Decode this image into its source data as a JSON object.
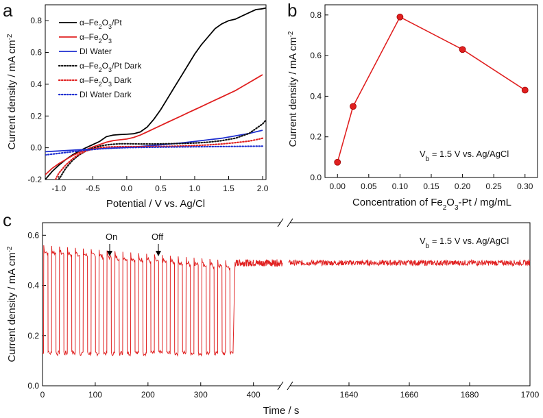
{
  "colors": {
    "black": "#000000",
    "red": "#e02020",
    "blue": "#1f2fd0",
    "dark_black": "#111111",
    "dark_red": "#e02020",
    "dark_blue": "#1f2fd0"
  },
  "chart_data": [
    {
      "type": "line",
      "panel_label": "a",
      "title": "",
      "xlabel": "Potential / V vs. Ag/Cl",
      "ylabel_main": "Current density / mA cm",
      "ylabel_sup": "-2",
      "xlim": [
        -1.2,
        2.05
      ],
      "ylim": [
        -0.2,
        0.9
      ],
      "xticks": [
        -1.0,
        -0.5,
        0.0,
        0.5,
        1.0,
        1.5,
        2.0
      ],
      "xtick_labels": [
        "-1.0",
        "-0.5",
        "0.0",
        "0.5",
        "1.0",
        "1.5",
        "2.0"
      ],
      "yticks": [
        -0.2,
        0.0,
        0.2,
        0.4,
        0.6,
        0.8
      ],
      "ytick_labels": [
        "-0.2",
        "0.0",
        "0.2",
        "0.4",
        "0.6",
        "0.8"
      ],
      "legend_position": "top-left",
      "series": [
        {
          "name": "α–Fe2O3/Pt",
          "label_prefix": "α–Fe",
          "label_sub1": "2",
          "label_mid": "O",
          "label_sub2": "3",
          "label_suffix": "/Pt",
          "style": "solid",
          "color": "black",
          "x": [
            -1.2,
            -1.1,
            -1.0,
            -0.9,
            -0.8,
            -0.7,
            -0.6,
            -0.5,
            -0.4,
            -0.3,
            -0.2,
            -0.1,
            0.0,
            0.1,
            0.2,
            0.3,
            0.4,
            0.5,
            0.6,
            0.7,
            0.8,
            0.9,
            1.0,
            1.1,
            1.2,
            1.3,
            1.4,
            1.5,
            1.6,
            1.7,
            1.8,
            1.9,
            2.0,
            2.05
          ],
          "y": [
            -0.2,
            -0.15,
            -0.11,
            -0.075,
            -0.045,
            -0.02,
            0.0,
            0.02,
            0.04,
            0.07,
            0.08,
            0.083,
            0.085,
            0.088,
            0.1,
            0.13,
            0.18,
            0.24,
            0.31,
            0.38,
            0.45,
            0.52,
            0.59,
            0.65,
            0.7,
            0.75,
            0.78,
            0.8,
            0.81,
            0.83,
            0.85,
            0.87,
            0.875,
            0.88
          ]
        },
        {
          "name": "α–Fe2O3",
          "label_prefix": "α–Fe",
          "label_sub1": "2",
          "label_mid": "O",
          "label_sub2": "3",
          "label_suffix": "",
          "style": "solid",
          "color": "red",
          "x": [
            -1.2,
            -1.1,
            -1.0,
            -0.9,
            -0.8,
            -0.7,
            -0.6,
            -0.5,
            -0.4,
            -0.3,
            -0.2,
            -0.1,
            0.0,
            0.1,
            0.2,
            0.3,
            0.4,
            0.5,
            0.6,
            0.7,
            0.8,
            0.9,
            1.0,
            1.1,
            1.2,
            1.3,
            1.4,
            1.5,
            1.6,
            1.7,
            1.8,
            1.9,
            2.0
          ],
          "y": [
            -0.17,
            -0.13,
            -0.1,
            -0.075,
            -0.05,
            -0.03,
            -0.012,
            0.005,
            0.02,
            0.035,
            0.045,
            0.05,
            0.055,
            0.065,
            0.08,
            0.1,
            0.12,
            0.14,
            0.16,
            0.18,
            0.2,
            0.22,
            0.24,
            0.26,
            0.28,
            0.3,
            0.32,
            0.34,
            0.36,
            0.385,
            0.41,
            0.435,
            0.46
          ]
        },
        {
          "name": "DI Water",
          "label_prefix": "DI Water",
          "label_sub1": "",
          "label_mid": "",
          "label_sub2": "",
          "label_suffix": "",
          "style": "solid",
          "color": "blue",
          "x": [
            -1.2,
            -1.0,
            -0.8,
            -0.6,
            -0.4,
            -0.2,
            0.0,
            0.2,
            0.4,
            0.6,
            0.8,
            1.0,
            1.2,
            1.4,
            1.6,
            1.8,
            2.0
          ],
          "y": [
            -0.025,
            -0.02,
            -0.015,
            -0.01,
            -0.006,
            -0.002,
            0.002,
            0.008,
            0.015,
            0.022,
            0.03,
            0.04,
            0.05,
            0.06,
            0.075,
            0.09,
            0.11
          ]
        },
        {
          "name": "α–Fe2O3/Pt Dark",
          "label_prefix": "α–Fe",
          "label_sub1": "2",
          "label_mid": "O",
          "label_sub2": "3",
          "label_suffix": "/Pt  Dark",
          "style": "dotted",
          "color": "dark_black",
          "x": [
            -1.0,
            -0.9,
            -0.8,
            -0.7,
            -0.6,
            -0.5,
            -0.4,
            -0.3,
            -0.2,
            -0.1,
            0.0,
            0.2,
            0.4,
            0.6,
            0.8,
            1.0,
            1.2,
            1.4,
            1.6,
            1.8,
            1.9,
            2.0,
            2.05
          ],
          "y": [
            -0.2,
            -0.13,
            -0.08,
            -0.045,
            -0.02,
            -0.003,
            0.01,
            0.018,
            0.022,
            0.025,
            0.025,
            0.024,
            0.024,
            0.025,
            0.027,
            0.03,
            0.035,
            0.045,
            0.06,
            0.09,
            0.12,
            0.15,
            0.175
          ]
        },
        {
          "name": "α–Fe2O3 Dark",
          "label_prefix": "α–Fe",
          "label_sub1": "2",
          "label_mid": "O",
          "label_sub2": "3",
          "label_suffix": "  Dark",
          "style": "dotted",
          "color": "dark_red",
          "x": [
            -1.05,
            -1.0,
            -0.9,
            -0.8,
            -0.7,
            -0.6,
            -0.5,
            -0.4,
            -0.3,
            -0.2,
            0.0,
            0.2,
            0.4,
            0.6,
            0.8,
            1.0,
            1.2,
            1.4,
            1.6,
            1.8,
            1.9,
            2.0
          ],
          "y": [
            -0.2,
            -0.16,
            -0.11,
            -0.07,
            -0.04,
            -0.02,
            -0.008,
            0.0,
            0.004,
            0.006,
            0.007,
            0.007,
            0.008,
            0.009,
            0.011,
            0.014,
            0.018,
            0.024,
            0.032,
            0.042,
            0.05,
            0.06
          ]
        },
        {
          "name": "DI Water Dark",
          "label_prefix": "DI Water  Dark",
          "label_sub1": "",
          "label_mid": "",
          "label_sub2": "",
          "label_suffix": "",
          "style": "dotted",
          "color": "dark_blue",
          "x": [
            -1.2,
            -1.0,
            -0.8,
            -0.6,
            -0.4,
            -0.2,
            0.0,
            0.5,
            1.0,
            1.5,
            2.0
          ],
          "y": [
            -0.045,
            -0.035,
            -0.025,
            -0.015,
            -0.007,
            -0.002,
            0.001,
            0.004,
            0.006,
            0.008,
            0.01
          ]
        }
      ]
    },
    {
      "type": "line",
      "panel_label": "b",
      "title": "",
      "xlabel_prefix": "Concentration of Fe",
      "xlabel_sub1": "2",
      "xlabel_mid": "O",
      "xlabel_sub2": "3",
      "xlabel_suffix": "-Pt / mg/mL",
      "ylabel_main": "Current density / mA cm",
      "ylabel_sup": "-2",
      "xlim": [
        -0.02,
        0.32
      ],
      "ylim": [
        0.0,
        0.85
      ],
      "xticks": [
        0.0,
        0.05,
        0.1,
        0.15,
        0.2,
        0.25,
        0.3
      ],
      "xtick_labels": [
        "0.00",
        "0.05",
        "0.10",
        "0.15",
        "0.20",
        "0.25",
        "0.30"
      ],
      "yticks": [
        0.0,
        0.2,
        0.4,
        0.6,
        0.8
      ],
      "ytick_labels": [
        "0.0",
        "0.2",
        "0.4",
        "0.6",
        "0.8"
      ],
      "annotation_main": "V",
      "annotation_sub": "b",
      "annotation_rest": " = 1.5 V vs. Ag/AgCl",
      "series": [
        {
          "name": "Current density",
          "color": "red",
          "x": [
            0.0,
            0.025,
            0.1,
            0.2,
            0.3
          ],
          "y": [
            0.075,
            0.35,
            0.79,
            0.63,
            0.43
          ]
        }
      ]
    },
    {
      "type": "line",
      "panel_label": "c",
      "title": "",
      "xlabel": "Time / s",
      "ylabel_main": "Current density / mA cm",
      "ylabel_sup": "-2",
      "ylim": [
        0.0,
        0.65
      ],
      "yticks": [
        0.0,
        0.2,
        0.4,
        0.6
      ],
      "ytick_labels": [
        "0.0",
        "0.2",
        "0.4",
        "0.6"
      ],
      "segment1_xlim": [
        0,
        455
      ],
      "segment1_xticks": [
        0,
        100,
        200,
        300,
        400
      ],
      "segment1_xtick_labels": [
        "0",
        "100",
        "200",
        "300",
        "400"
      ],
      "segment2_xlim": [
        1620,
        1700
      ],
      "segment2_xticks": [
        1640,
        1660,
        1680,
        1700
      ],
      "segment2_xtick_labels": [
        "1640",
        "1660",
        "1680",
        "1700"
      ],
      "axis_break": true,
      "annotation_on": "On",
      "annotation_off": "Off",
      "annotation_main": "V",
      "annotation_sub": "b",
      "annotation_rest": " = 1.5 V vs. Ag/AgCl",
      "series": [
        {
          "name": "Chopped light response",
          "color": "red",
          "pulses": {
            "start": 2,
            "period": 15,
            "on_fraction": 0.55,
            "count": 24,
            "on_start_level": 0.54,
            "on_end_level": 0.48,
            "off_level": 0.13
          },
          "steady_level_segment1": {
            "t_start": 365,
            "t_end": 455,
            "value": 0.49
          },
          "steady_level_segment2": {
            "t_start": 1620,
            "t_end": 1700,
            "value": 0.49
          }
        }
      ]
    }
  ]
}
